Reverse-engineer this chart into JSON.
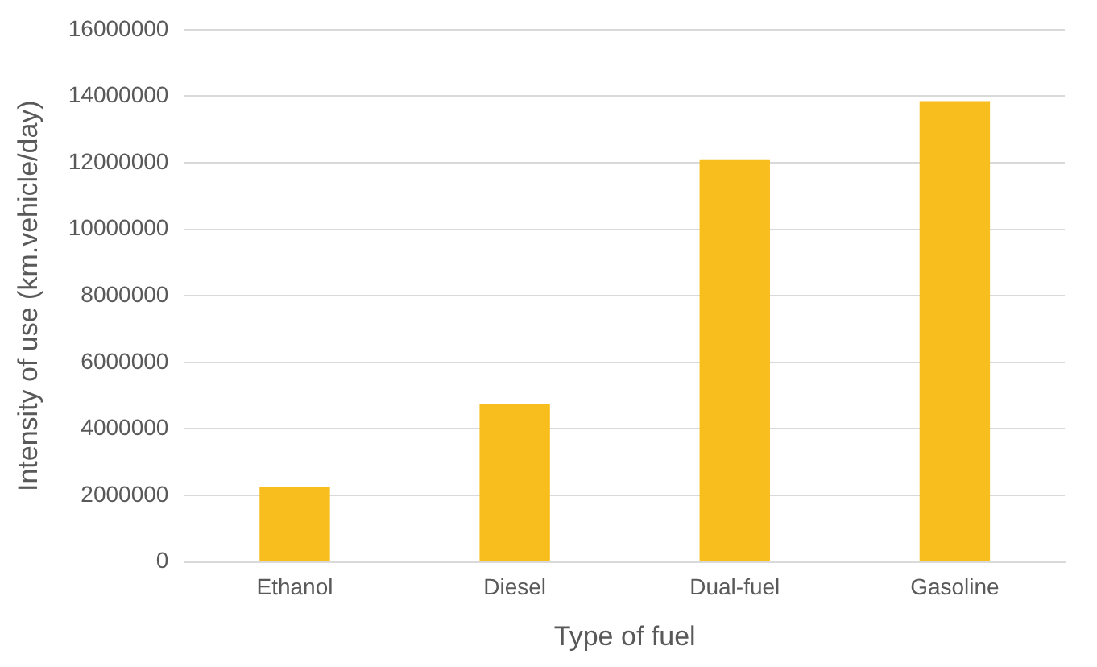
{
  "chart_data": {
    "type": "bar",
    "xlabel": "Type of fuel",
    "ylabel": "Intensity of use (km.vehicle/day)",
    "categories": [
      "Ethanol",
      "Diesel",
      "Dual-fuel",
      "Gasoline"
    ],
    "values": [
      2250000,
      4750000,
      12100000,
      13850000
    ],
    "color": "#f8be1e",
    "ylim": [
      0,
      16000000
    ],
    "yticks": [
      0,
      2000000,
      4000000,
      6000000,
      8000000,
      10000000,
      12000000,
      14000000,
      16000000
    ],
    "grid": "y",
    "legend": false
  }
}
